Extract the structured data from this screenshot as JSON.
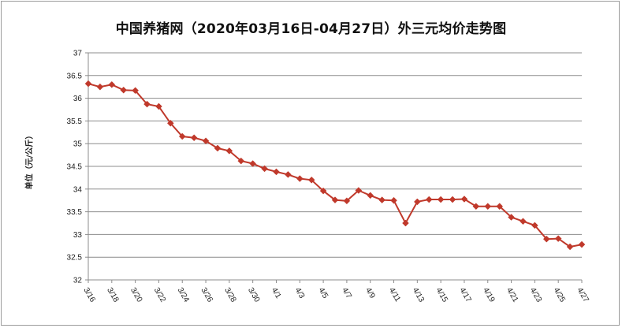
{
  "chart_data": {
    "type": "line",
    "title": "中国养猪网（2020年03月16日-04月27日）外三元均价走势图",
    "ylabel": "单位（元/公斤）",
    "xlabel": "",
    "ylim": [
      32,
      37
    ],
    "yticks": [
      "32",
      "32.5",
      "33",
      "33.5",
      "34",
      "34.5",
      "35",
      "35.5",
      "36",
      "36.5",
      "37"
    ],
    "x_tick_labels": [
      "3/16",
      "3/18",
      "3/20",
      "3/22",
      "3/24",
      "3/26",
      "3/28",
      "3/30",
      "4/1",
      "4/3",
      "4/5",
      "4/7",
      "4/9",
      "4/11",
      "4/13",
      "4/15",
      "4/17",
      "4/19",
      "4/21",
      "4/23",
      "4/25",
      "4/27"
    ],
    "grid": true,
    "legend": "none",
    "series_color": "#c0392b",
    "x": [
      "3/16",
      "3/17",
      "3/18",
      "3/19",
      "3/20",
      "3/21",
      "3/22",
      "3/23",
      "3/24",
      "3/25",
      "3/26",
      "3/27",
      "3/28",
      "3/29",
      "3/30",
      "3/31",
      "4/1",
      "4/2",
      "4/3",
      "4/4",
      "4/5",
      "4/6",
      "4/7",
      "4/8",
      "4/9",
      "4/10",
      "4/11",
      "4/12",
      "4/13",
      "4/14",
      "4/15",
      "4/16",
      "4/17",
      "4/18",
      "4/19",
      "4/20",
      "4/21",
      "4/22",
      "4/23",
      "4/24",
      "4/25",
      "4/26",
      "4/27"
    ],
    "values": [
      36.32,
      36.25,
      36.3,
      36.18,
      36.17,
      35.87,
      35.82,
      35.45,
      35.16,
      35.13,
      35.06,
      34.9,
      34.84,
      34.62,
      34.56,
      34.45,
      34.38,
      34.32,
      34.23,
      34.2,
      33.96,
      33.76,
      33.74,
      33.97,
      33.86,
      33.76,
      33.75,
      33.25,
      33.72,
      33.77,
      33.77,
      33.77,
      33.78,
      33.62,
      33.62,
      33.62,
      33.38,
      33.29,
      33.2,
      32.9,
      32.91,
      32.73,
      32.78
    ]
  }
}
